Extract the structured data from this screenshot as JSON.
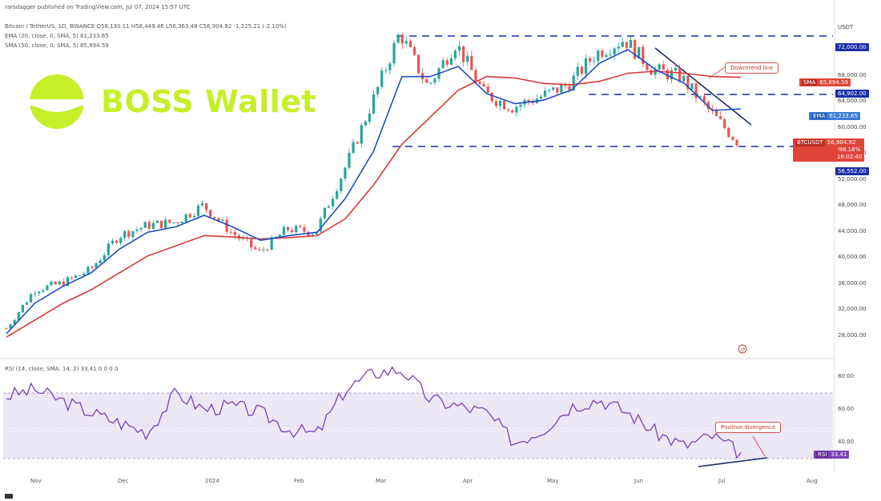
{
  "header": {
    "publisher": "rarsdagger published on TradingView.com, Jul 07, 2024 15:57 UTC",
    "symbol_line": "Bitcoin / TetherUS, 1D, BINANCE  O58,130.11 H58,449.46 L56,363.48 C56,904.92 -1,225.21 (-2.10%)",
    "ema_line": "EMA (20, close, 0, SMA, 5)  61,233.65",
    "sma_line": "SMA (50, close, 0, SMA, 5)  65,894.59"
  },
  "logo": {
    "text": "BOSS Wallet",
    "color": "#c6ef2a"
  },
  "price_axis": {
    "currency": "USDT",
    "ticks": [
      "72,000.00",
      "68,000.00",
      "64,000.00",
      "60,000.00",
      "56,000.00",
      "52,000.00",
      "48,000.00",
      "44,000.00",
      "40,000.00",
      "36,000.00",
      "32,000.00",
      "28,000.00"
    ]
  },
  "badges": {
    "sma": {
      "tag": "SMA",
      "value": "65,894.59",
      "color": "#e0453a"
    },
    "lvl64": {
      "value": "64,902.00",
      "color": "#1a2fa8"
    },
    "ema": {
      "tag": "EMA",
      "value": "61,233.65",
      "color": "#3a7bd5"
    },
    "btc": {
      "tag": "BTCUSDT",
      "value": "56,904.92",
      "sub1": "-98.18%",
      "sub2": "16:02:40",
      "color": "#e0453a"
    },
    "lvl56": {
      "value": "56,552.00",
      "color": "#1a2fa8"
    },
    "lvl72": {
      "value": "72,000.00",
      "color": "#1a2fa8"
    },
    "rsi": {
      "tag": "RSI",
      "value": "33.41",
      "color": "#7b3fb5"
    }
  },
  "callouts": {
    "downtrend": "Downtrend line",
    "divergence": "Positive divergence"
  },
  "rsi": {
    "header": "RSI (14, close, SMA, 14, 2)  33.41  0  0  0  0",
    "ticks": [
      "80.00",
      "60.00",
      "40.00"
    ]
  },
  "x_axis": {
    "labels": [
      "Nov",
      "Dec",
      "2024",
      "Feb",
      "Mar",
      "Apr",
      "May",
      "Jun",
      "Jul",
      "Aug"
    ]
  },
  "chart_data": {
    "type": "line",
    "title": "Bitcoin / TetherUS, 1D, BINANCE",
    "ylabel": "USDT",
    "ylim": [
      28000,
      74000
    ],
    "levels": [
      72000,
      64902,
      56552
    ],
    "series": [
      {
        "name": "BTCUSDT",
        "values": [
          28800,
          34500,
          35500,
          37500,
          42500,
          44000,
          44500,
          47000,
          43000,
          40000,
          43500,
          43000,
          52000,
          62000,
          72500,
          64500,
          71000,
          63500,
          61500,
          63000,
          64800,
          69500,
          71500,
          67000,
          66000,
          61000,
          56500
        ]
      },
      {
        "name": "EMA (20, close, 0, SMA, 5)",
        "values": [
          28000,
          32500,
          35000,
          37000,
          40500,
          43000,
          43800,
          45500,
          43800,
          41800,
          42500,
          43000,
          48000,
          55000,
          66000,
          66000,
          67500,
          63500,
          62000,
          62500,
          64000,
          68000,
          70000,
          67000,
          65000,
          61000,
          61233.65
        ]
      },
      {
        "name": "SMA (50, close, 0, SMA, 5)",
        "values": [
          27500,
          30000,
          32500,
          34500,
          37000,
          39500,
          41000,
          42500,
          42300,
          42000,
          42200,
          42500,
          45000,
          50000,
          56000,
          60000,
          64000,
          66000,
          65800,
          65000,
          64800,
          65300,
          66500,
          66800,
          66500,
          66000,
          65894.59
        ]
      }
    ],
    "rsi": {
      "name": "RSI (14, close, SMA, 14, 2)",
      "values": [
        68,
        72,
        65,
        58,
        52,
        46,
        70,
        60,
        62,
        58,
        48,
        45,
        72,
        82,
        84,
        66,
        62,
        58,
        40,
        48,
        62,
        66,
        58,
        46,
        38,
        44,
        33.41
      ]
    },
    "annotations": [
      "Downtrend line",
      "Positive divergence"
    ],
    "x_labels": [
      "Nov",
      "Dec",
      "2024",
      "Feb",
      "Mar",
      "Apr",
      "May",
      "Jun",
      "Jul",
      "Aug"
    ]
  }
}
